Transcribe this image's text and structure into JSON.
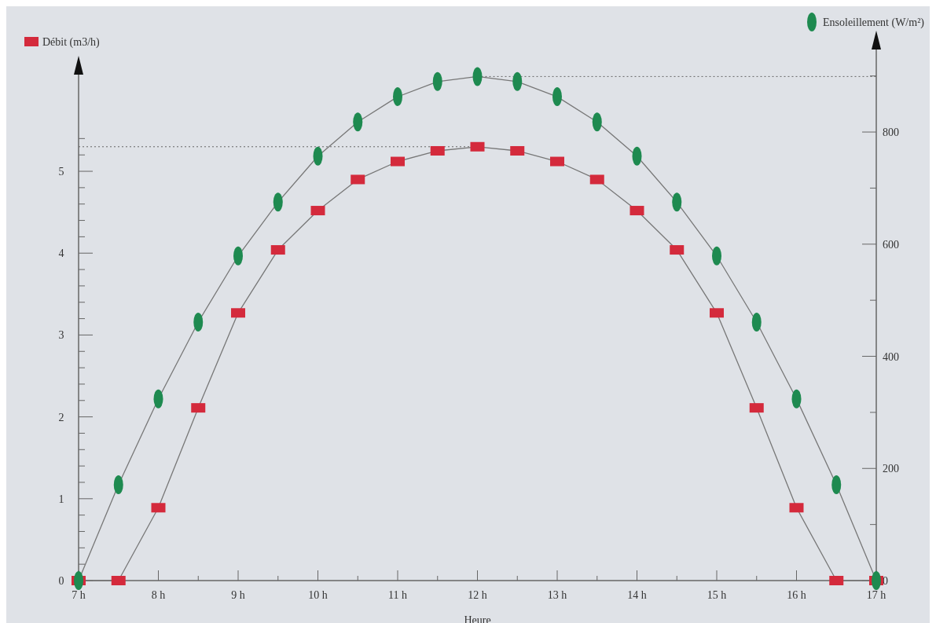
{
  "chart_data": {
    "type": "line",
    "xlabel": "Heure",
    "x": [
      7,
      7.5,
      8,
      8.5,
      9,
      9.5,
      10,
      10.5,
      11,
      11.5,
      12,
      12.5,
      13,
      13.5,
      14,
      14.5,
      15,
      15.5,
      16,
      16.5,
      17
    ],
    "xlim": [
      7,
      17
    ],
    "xticks": [
      {
        "value": 7,
        "label": "7 h"
      },
      {
        "value": 7.5,
        "label": null
      },
      {
        "value": 8,
        "label": "8 h"
      },
      {
        "value": 8.5,
        "label": null
      },
      {
        "value": 9,
        "label": "9 h"
      },
      {
        "value": 9.5,
        "label": null
      },
      {
        "value": 10,
        "label": "10 h"
      },
      {
        "value": 10.5,
        "label": null
      },
      {
        "value": 11,
        "label": "11 h"
      },
      {
        "value": 11.5,
        "label": null
      },
      {
        "value": 12,
        "label": "12 h"
      },
      {
        "value": 12.5,
        "label": null
      },
      {
        "value": 13,
        "label": "13 h"
      },
      {
        "value": 13.5,
        "label": null
      },
      {
        "value": 14,
        "label": "14 h"
      },
      {
        "value": 14.5,
        "label": null
      },
      {
        "value": 15,
        "label": "15 h"
      },
      {
        "value": 15.5,
        "label": null
      },
      {
        "value": 16,
        "label": "16 h"
      },
      {
        "value": 16.5,
        "label": null
      },
      {
        "value": 17,
        "label": "17 h"
      }
    ],
    "ylim": [
      0,
      6.2
    ],
    "yticks": [
      0,
      {
        "value": 0.2,
        "label": null
      },
      {
        "value": 0.4,
        "label": null
      },
      {
        "value": 0.6,
        "label": null
      },
      {
        "value": 0.8,
        "label": null
      },
      1,
      {
        "value": 1.2,
        "label": null
      },
      {
        "value": 1.4,
        "label": null
      },
      {
        "value": 1.6,
        "label": null
      },
      {
        "value": 1.8,
        "label": null
      },
      2,
      {
        "value": 2.2,
        "label": null
      },
      {
        "value": 2.4,
        "label": null
      },
      {
        "value": 2.6,
        "label": null
      },
      {
        "value": 2.8,
        "label": null
      },
      3,
      {
        "value": 3.2,
        "label": null
      },
      {
        "value": 3.4,
        "label": null
      },
      {
        "value": 3.6,
        "label": null
      },
      {
        "value": 3.8,
        "label": null
      },
      4,
      {
        "value": 4.2,
        "label": null
      },
      {
        "value": 4.4,
        "label": null
      },
      {
        "value": 4.6,
        "label": null
      },
      {
        "value": 4.8,
        "label": null
      },
      5,
      {
        "value": 5.2,
        "label": null
      },
      {
        "value": 5.4,
        "label": null
      }
    ],
    "y2lim": [
      0,
      950
    ],
    "y2ticks": [
      0,
      {
        "value": 100,
        "label": null
      },
      200,
      {
        "value": 300,
        "label": null
      },
      400,
      {
        "value": 500,
        "label": null
      },
      600,
      {
        "value": 700,
        "label": null
      },
      800,
      {
        "value": 900,
        "label": null
      }
    ],
    "series": [
      {
        "name": "Débit (m3/h)",
        "color": "#d42a3c",
        "marker": "square",
        "values": [
          0,
          0,
          0.89,
          2.11,
          3.27,
          4.04,
          4.52,
          4.9,
          5.12,
          5.25,
          5.3,
          5.25,
          5.12,
          4.9,
          4.52,
          4.04,
          3.27,
          2.11,
          0.89,
          0,
          0
        ]
      },
      {
        "name": "Ensoleillement (W/m²)",
        "color": "#1e8a50",
        "marker": "circle",
        "axis": "y2",
        "values": [
          0,
          171,
          324,
          461,
          579,
          675,
          757,
          818,
          863,
          890,
          899,
          890,
          863,
          818,
          757,
          675,
          579,
          461,
          324,
          171,
          0
        ]
      }
    ],
    "ref_lines": [
      {
        "axis": "y",
        "value": 5.3,
        "line_style": "dotted"
      },
      {
        "axis": "y2",
        "value": 899,
        "line_style": "dotted"
      }
    ],
    "legend": "top",
    "grid": false
  }
}
